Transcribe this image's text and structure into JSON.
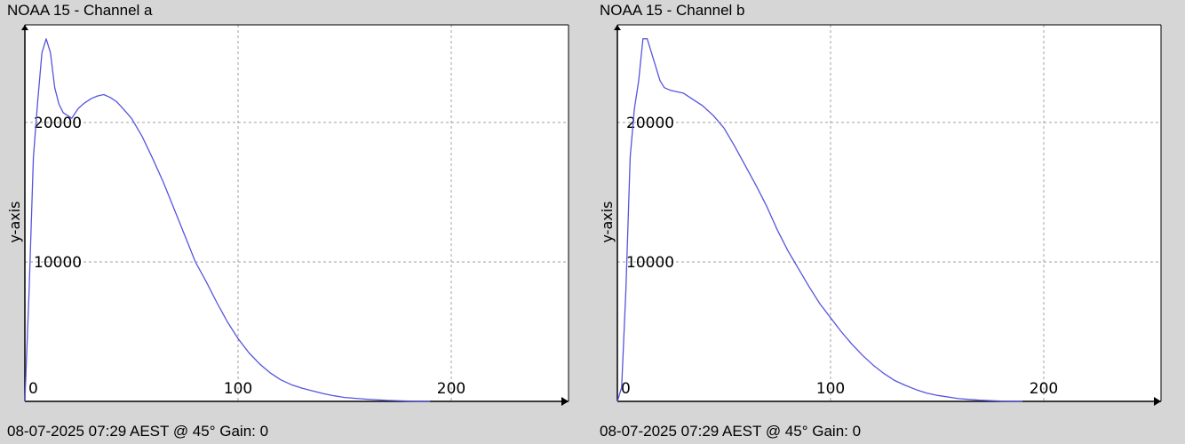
{
  "charts": [
    {
      "title": "NOAA 15 - Channel a",
      "footer": "08-07-2025 07:29 AEST @ 45° Gain: 0",
      "ylabel": "y-axis"
    },
    {
      "title": "NOAA 15 - Channel b",
      "footer": "08-07-2025 07:29 AEST @ 45° Gain: 0",
      "ylabel": "y-axis"
    }
  ],
  "colors": {
    "line": "#5555dd",
    "grid": "#a0a0a0",
    "background": "#ffffff",
    "page": "#d6d6d6"
  },
  "chart_data": [
    {
      "type": "line",
      "title": "NOAA 15 - Channel a",
      "xlabel": "",
      "ylabel": "y-axis",
      "xlim": [
        0,
        255
      ],
      "ylim": [
        0,
        27000
      ],
      "x_ticks": [
        0,
        100,
        200
      ],
      "y_ticks": [
        10000,
        20000
      ],
      "grid": true,
      "series": [
        {
          "x": [
            0,
            2,
            4,
            6,
            8,
            10,
            12,
            14,
            16,
            18,
            20,
            22,
            25,
            28,
            31,
            34,
            37,
            40,
            43,
            46,
            50,
            55,
            60,
            65,
            70,
            75,
            80,
            85,
            90,
            95,
            100,
            105,
            110,
            115,
            120,
            125,
            130,
            135,
            140,
            145,
            150,
            160,
            170,
            180,
            190
          ],
          "y": [
            0,
            8000,
            17500,
            21500,
            25000,
            26000,
            25000,
            22500,
            21300,
            20700,
            20500,
            20300,
            21000,
            21400,
            21700,
            21900,
            22000,
            21800,
            21500,
            21000,
            20300,
            19000,
            17400,
            15700,
            13800,
            11900,
            10000,
            8600,
            7100,
            5700,
            4500,
            3500,
            2700,
            2050,
            1550,
            1200,
            950,
            750,
            560,
            400,
            280,
            160,
            70,
            20,
            0
          ]
        }
      ]
    },
    {
      "type": "line",
      "title": "NOAA 15 - Channel b",
      "xlabel": "",
      "ylabel": "y-axis",
      "xlim": [
        0,
        255
      ],
      "ylim": [
        0,
        27000
      ],
      "x_ticks": [
        0,
        100,
        200
      ],
      "y_ticks": [
        10000,
        20000
      ],
      "grid": true,
      "series": [
        {
          "x": [
            0,
            2,
            4,
            6,
            8,
            10,
            12,
            14,
            16,
            18,
            20,
            22,
            25,
            28,
            31,
            34,
            37,
            40,
            45,
            50,
            55,
            60,
            65,
            70,
            75,
            80,
            85,
            90,
            95,
            100,
            105,
            110,
            115,
            120,
            125,
            130,
            135,
            140,
            145,
            150,
            160,
            170,
            180,
            190
          ],
          "y": [
            0,
            1000,
            8000,
            17500,
            21000,
            23000,
            26000,
            26000,
            25000,
            24000,
            23000,
            22500,
            22300,
            22200,
            22100,
            21800,
            21500,
            21200,
            20500,
            19600,
            18300,
            16900,
            15500,
            14000,
            12300,
            10800,
            9500,
            8200,
            7000,
            6000,
            5000,
            4100,
            3300,
            2600,
            2000,
            1500,
            1150,
            850,
            600,
            430,
            200,
            80,
            20,
            0
          ]
        }
      ]
    }
  ]
}
